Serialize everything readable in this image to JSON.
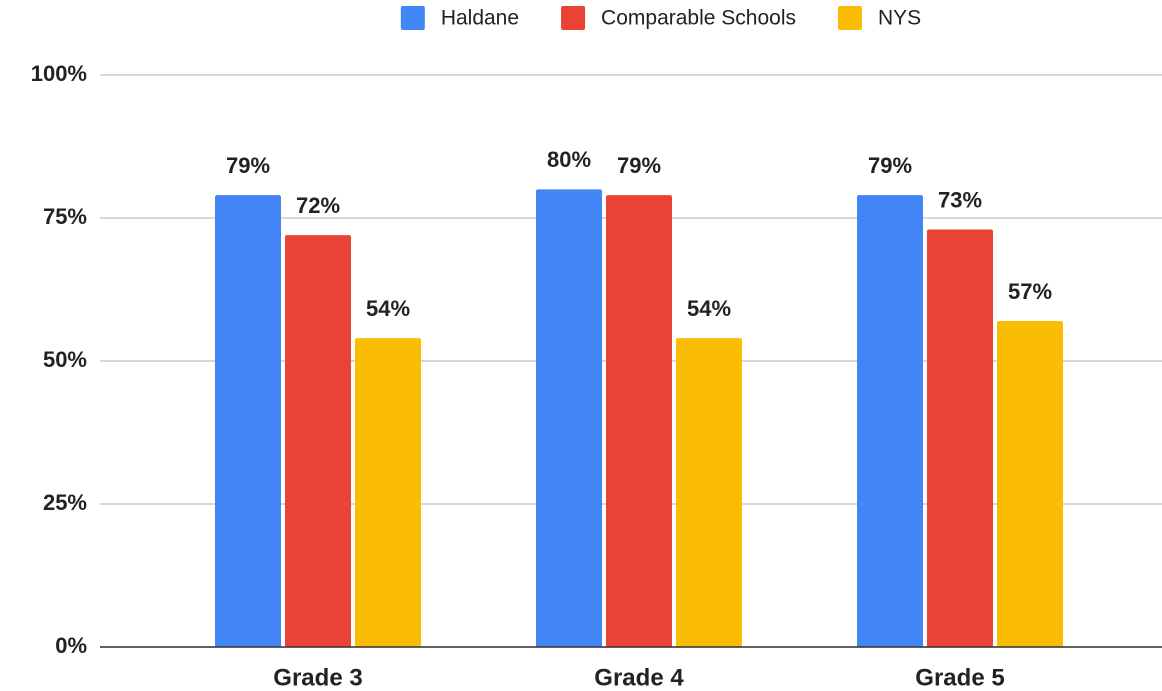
{
  "chart_data": {
    "type": "bar",
    "categories": [
      "Grade 3",
      "Grade 4",
      "Grade 5"
    ],
    "series": [
      {
        "name": "Haldane",
        "color": "#4285f4",
        "values": [
          79,
          80,
          79
        ],
        "value_labels": [
          "79%",
          "80%",
          "79%"
        ]
      },
      {
        "name": "Comparable Schools",
        "color": "#ea4335",
        "values": [
          72,
          79,
          73
        ],
        "value_labels": [
          "72%",
          "79%",
          "73%"
        ]
      },
      {
        "name": "NYS",
        "color": "#fbbc04",
        "values": [
          54,
          54,
          57
        ],
        "value_labels": [
          "54%",
          "54%",
          "57%"
        ]
      }
    ],
    "ylim": [
      0,
      100
    ],
    "yticks": [
      {
        "value": 0,
        "label": "0%"
      },
      {
        "value": 25,
        "label": "25%"
      },
      {
        "value": 50,
        "label": "50%"
      },
      {
        "value": 75,
        "label": "75%"
      },
      {
        "value": 100,
        "label": "100%"
      }
    ],
    "grid": true,
    "legend": "top"
  }
}
